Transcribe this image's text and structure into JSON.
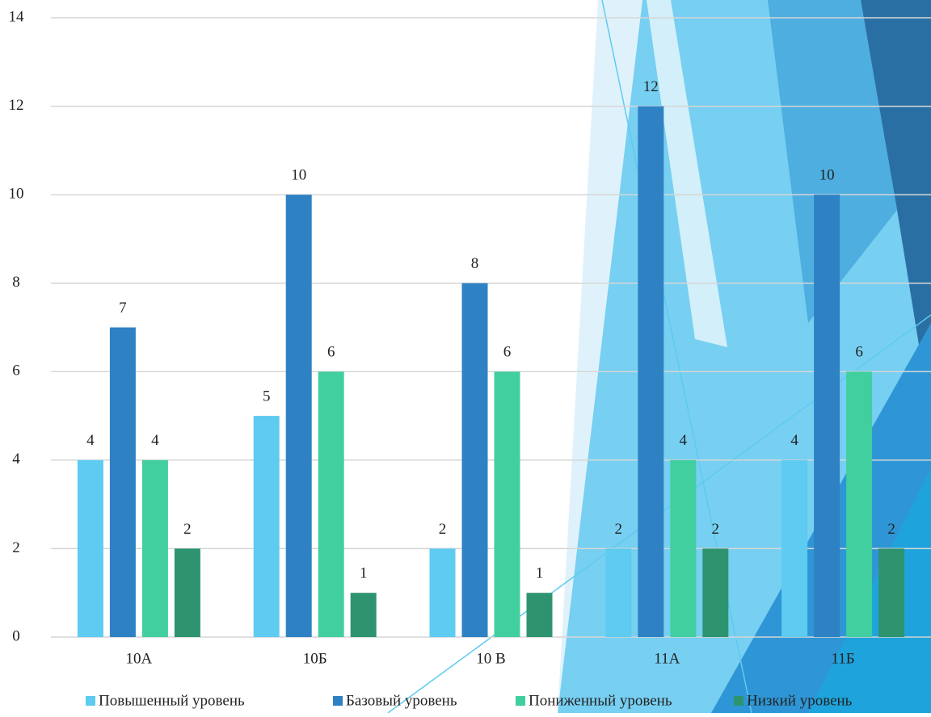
{
  "chart_data": {
    "type": "bar",
    "categories": [
      "10А",
      "10Б",
      "10 В",
      "11А",
      "11Б"
    ],
    "series": [
      {
        "name": "Повышенный уровень",
        "color": "#5ecbf0",
        "values": [
          4,
          5,
          2,
          2,
          4
        ]
      },
      {
        "name": "Базовый уровень",
        "color": "#2e82c4",
        "values": [
          7,
          10,
          8,
          12,
          10
        ]
      },
      {
        "name": "Пониженный уровень",
        "color": "#41cfa0",
        "values": [
          4,
          6,
          6,
          4,
          6
        ]
      },
      {
        "name": "Низкий уровень",
        "color": "#2e9470",
        "values": [
          2,
          1,
          1,
          2,
          2
        ]
      }
    ],
    "ylim": [
      0,
      14
    ],
    "yticks": [
      0,
      2,
      4,
      6,
      8,
      10,
      12,
      14
    ],
    "grid": true,
    "legend": "bottom"
  }
}
